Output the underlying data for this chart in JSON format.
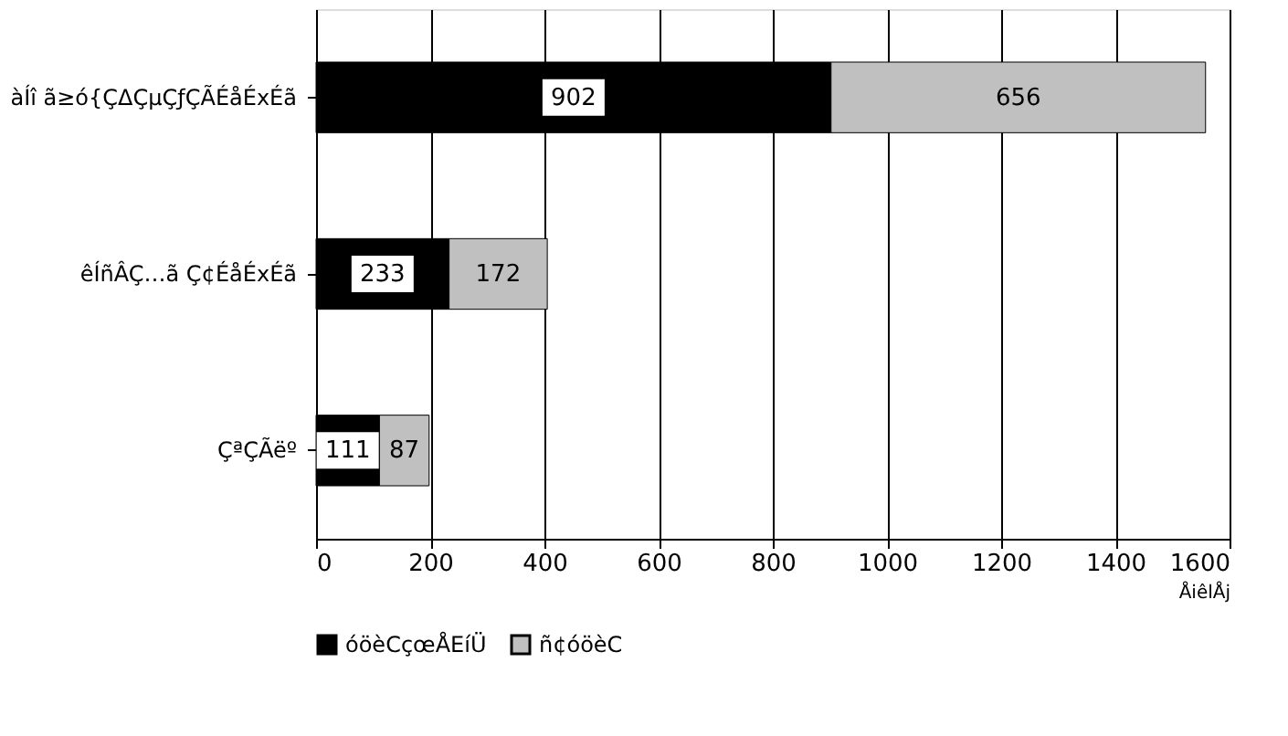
{
  "chart_data": {
    "type": "bar",
    "orientation": "horizontal",
    "stacked": true,
    "categories": [
      "àÍî ã≥ó{ÇΔÇµÇƒÇÃÉåÉxÉã",
      "êÍñÂÇ…ã  Ç¢ÉåÉxÉã",
      "ÇªÇÃëº"
    ],
    "series": [
      {
        "name": "óöèCçœÅEíÜ",
        "color": "#000000",
        "values": [
          902,
          233,
          111
        ]
      },
      {
        "name": "ñ¢óöèC",
        "color": "#c0c0c0",
        "values": [
          656,
          172,
          87
        ]
      }
    ],
    "xlim": [
      0,
      1600
    ],
    "xticks": [
      0,
      200,
      400,
      600,
      800,
      1000,
      1200,
      1400,
      1600
    ],
    "xlabel": "ÅiêlÅj",
    "grid": "x",
    "legend": "bottom",
    "data_labels": true
  }
}
